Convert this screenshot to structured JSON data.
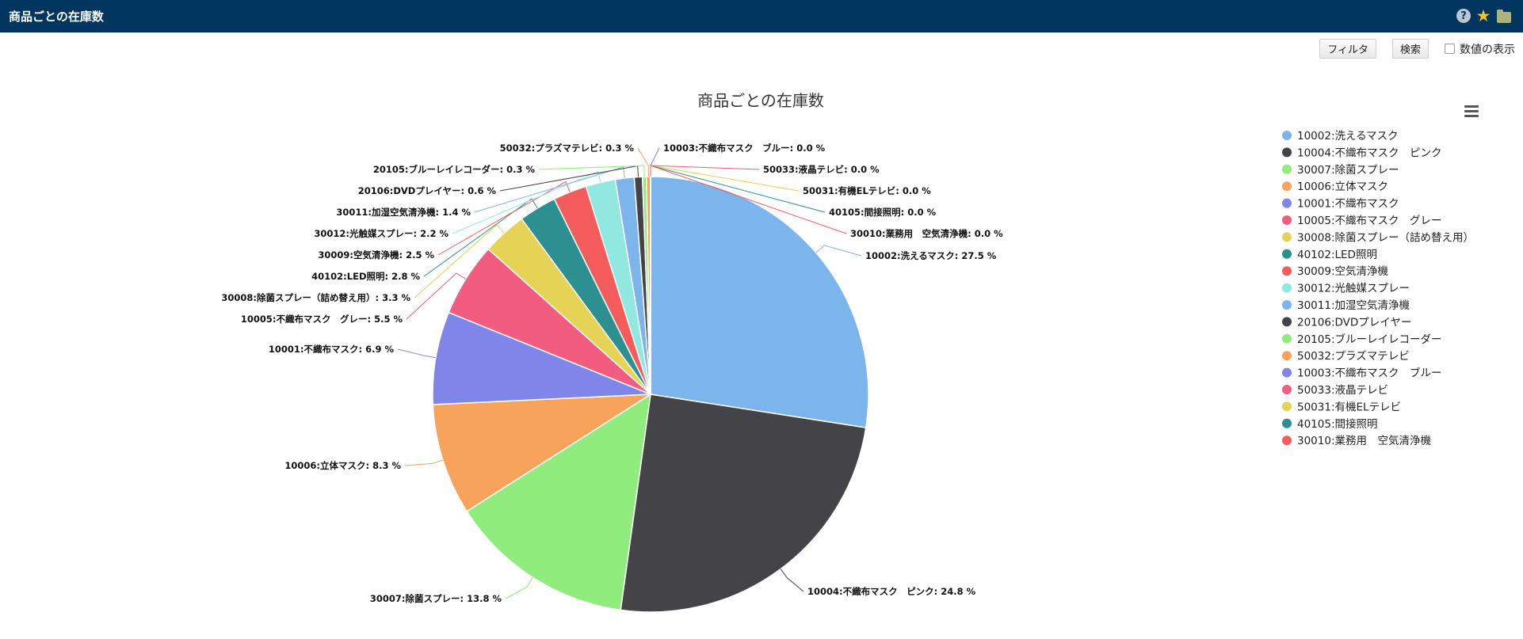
{
  "header": {
    "title": "商品ごとの在庫数"
  },
  "icons": [
    "help-icon",
    "star-icon",
    "folder-icon",
    "menu-icon"
  ],
  "toolbar": {
    "filter_label": "フィルタ",
    "search_label": "検索",
    "show_values_label": "数値の表示",
    "show_values_checked": false
  },
  "chart_data": {
    "type": "pie",
    "title": "商品ごとの在庫数",
    "legend_placement": "right",
    "slices": [
      {
        "name": "10002:洗えるマスク",
        "value": 27.5,
        "color": "#7cb5ec"
      },
      {
        "name": "10004:不織布マスク　ピンク",
        "value": 24.8,
        "color": "#434348"
      },
      {
        "name": "30007:除菌スプレー",
        "value": 13.8,
        "color": "#90ed7d"
      },
      {
        "name": "10006:立体マスク",
        "value": 8.3,
        "color": "#f7a35c"
      },
      {
        "name": "10001:不織布マスク",
        "value": 6.9,
        "color": "#8085e9"
      },
      {
        "name": "10005:不織布マスク　グレー",
        "value": 5.5,
        "color": "#f15c80"
      },
      {
        "name": "30008:除菌スプレー（詰め替え用）",
        "value": 3.3,
        "color": "#e4d354"
      },
      {
        "name": "40102:LED照明",
        "value": 2.8,
        "color": "#2b908f"
      },
      {
        "name": "30009:空気清浄機",
        "value": 2.5,
        "color": "#f45b5b"
      },
      {
        "name": "30012:光触媒スプレー",
        "value": 2.2,
        "color": "#91e8e1"
      },
      {
        "name": "30011:加湿空気清浄機",
        "value": 1.4,
        "color": "#7cb5ec"
      },
      {
        "name": "20106:DVDプレイヤー",
        "value": 0.6,
        "color": "#434348"
      },
      {
        "name": "20105:ブルーレイレコーダー",
        "value": 0.3,
        "color": "#90ed7d"
      },
      {
        "name": "50032:プラズマテレビ",
        "value": 0.3,
        "color": "#f7a35c"
      },
      {
        "name": "10003:不織布マスク　ブルー",
        "value": 0.0,
        "color": "#8085e9"
      },
      {
        "name": "50033:液晶テレビ",
        "value": 0.0,
        "color": "#f15c80"
      },
      {
        "name": "50031:有機ELテレビ",
        "value": 0.0,
        "color": "#e4d354"
      },
      {
        "name": "40105:間接照明",
        "value": 0.0,
        "color": "#2b908f"
      },
      {
        "name": "30010:業務用　空気清浄機",
        "value": 0.0,
        "color": "#f45b5b"
      }
    ],
    "label_suffix": " %"
  }
}
